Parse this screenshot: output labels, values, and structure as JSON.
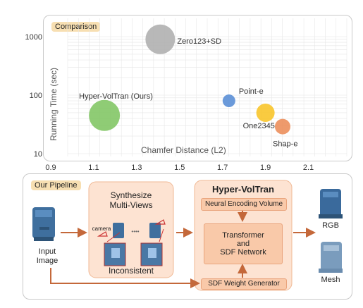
{
  "comparison": {
    "tag": "Comparison",
    "chart_data": {
      "type": "scatter",
      "xlabel": "Chamfer Distance (L2)",
      "ylabel": "Running Time (sec)",
      "xlim": [
        0.9,
        2.2
      ],
      "ylim_log": [
        10,
        1000
      ],
      "y_scale": "log",
      "x_ticks": [
        "0.9",
        "1.1",
        "1.3",
        "1.5",
        "1.7",
        "1.9",
        "2.1"
      ],
      "y_ticks": [
        "10",
        "100",
        "1000"
      ],
      "grid": true,
      "points": [
        {
          "label": "Zero123+SD",
          "x": 1.41,
          "y": 900,
          "color": "#b0b0b0",
          "size": 21
        },
        {
          "label": "Hyper-VolTran (Ours)",
          "x": 1.15,
          "y": 45,
          "color": "#83c766",
          "size": 22
        },
        {
          "label": "Point-e",
          "x": 1.73,
          "y": 80,
          "color": "#5b8fd6",
          "size": 9
        },
        {
          "label": "One2345",
          "x": 1.9,
          "y": 50,
          "color": "#f8c52b",
          "size": 13
        },
        {
          "label": "Shap-e",
          "x": 1.98,
          "y": 29,
          "color": "#ec8f5c",
          "size": 11
        }
      ]
    }
  },
  "pipeline": {
    "tag": "Our Pipeline",
    "input_label": "Input\nImage",
    "synth_title": "Synthesize\nMulti-Views",
    "camera_label": "camera",
    "dots": "••••",
    "inconsistent_label": "Inconsistent",
    "hyper_title": "Hyper-VolTran",
    "neural_label": "Neural Encoding Volume",
    "transformer_label": "Transformer\nand\nSDF Network",
    "sdf_weight_label": "SDF Weight Generator",
    "rgb_label": "RGB",
    "mesh_label": "Mesh",
    "colors": {
      "accent_box": "#fde3d2",
      "accent_border": "#f0b995",
      "arrow": "#c4683a"
    }
  }
}
